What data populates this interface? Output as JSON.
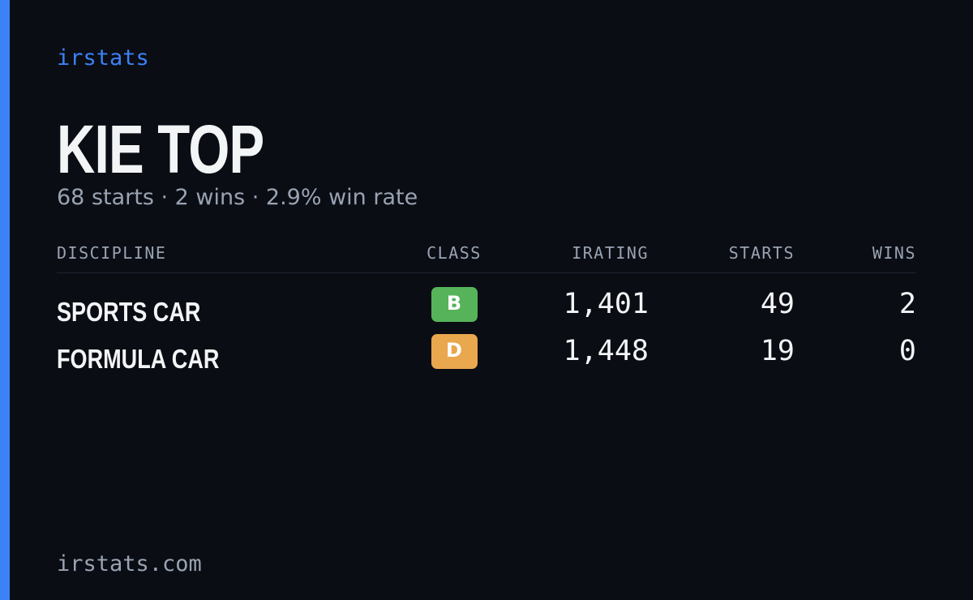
{
  "brand": "irstats",
  "driver": {
    "name": "KIE TOP",
    "summary": "68 starts · 2 wins · 2.9% win rate"
  },
  "table": {
    "headers": [
      "DISCIPLINE",
      "CLASS",
      "IRATING",
      "STARTS",
      "WINS"
    ],
    "rows": [
      {
        "discipline": "SPORTS CAR",
        "class": "B",
        "class_color": "#56b35a",
        "irating": "1,401",
        "starts": "49",
        "wins": "2"
      },
      {
        "discipline": "FORMULA CAR",
        "class": "D",
        "class_color": "#e9a74e",
        "irating": "1,448",
        "starts": "19",
        "wins": "0"
      }
    ]
  },
  "footer": "irstats.com"
}
